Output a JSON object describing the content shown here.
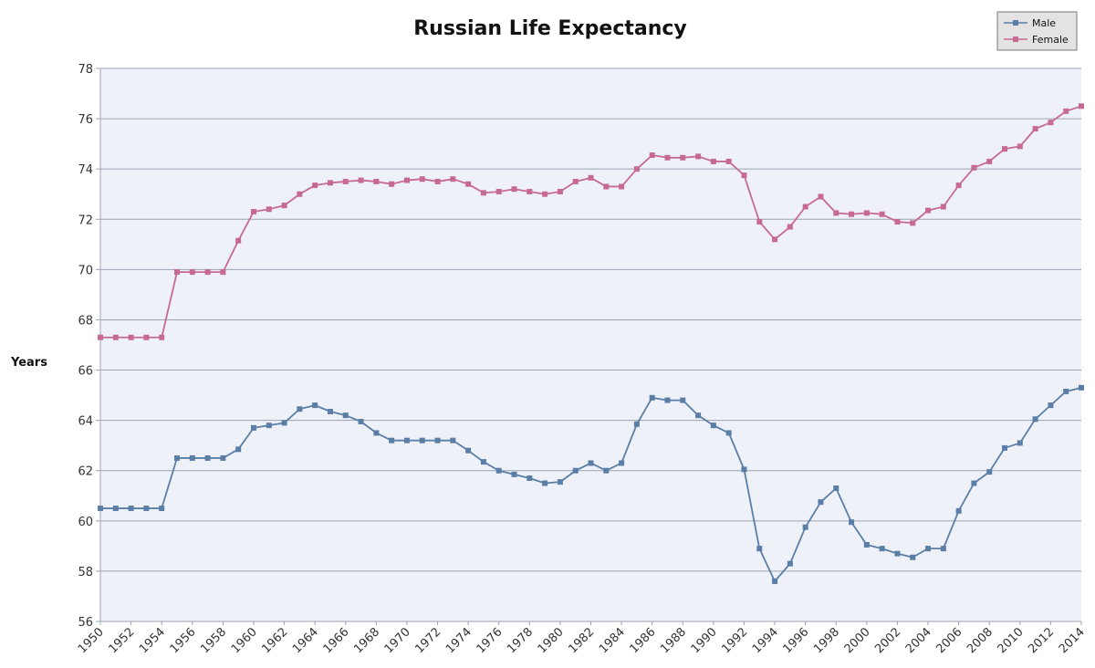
{
  "chart_data": {
    "type": "line",
    "title": "Russian Life Expectancy",
    "xlabel": "",
    "ylabel": "Years",
    "xlim": [
      1950,
      2014
    ],
    "ylim": [
      56,
      78
    ],
    "x_ticks": [
      "1950",
      "1952",
      "1954",
      "1956",
      "1958",
      "1960",
      "1962",
      "1964",
      "1966",
      "1968",
      "1970",
      "1972",
      "1974",
      "1976",
      "1978",
      "1980",
      "1982",
      "1984",
      "1986",
      "1988",
      "1990",
      "1992",
      "1994",
      "1996",
      "1998",
      "2000",
      "2002",
      "2004",
      "2006",
      "2008",
      "2010",
      "2012",
      "2014"
    ],
    "y_ticks": [
      "56",
      "58",
      "60",
      "62",
      "64",
      "66",
      "68",
      "70",
      "72",
      "74",
      "76",
      "78"
    ],
    "grid": true,
    "legend_position": "top-right",
    "x": [
      1950,
      1951,
      1952,
      1953,
      1954,
      1955,
      1956,
      1957,
      1958,
      1959,
      1960,
      1961,
      1962,
      1963,
      1964,
      1965,
      1966,
      1967,
      1968,
      1969,
      1970,
      1971,
      1972,
      1973,
      1974,
      1975,
      1976,
      1977,
      1978,
      1979,
      1980,
      1981,
      1982,
      1983,
      1984,
      1985,
      1986,
      1987,
      1988,
      1989,
      1990,
      1991,
      1992,
      1993,
      1994,
      1995,
      1996,
      1997,
      1998,
      1999,
      2000,
      2001,
      2002,
      2003,
      2004,
      2005,
      2006,
      2007,
      2008,
      2009,
      2010,
      2011,
      2012,
      2013,
      2014
    ],
    "series": [
      {
        "name": "Male",
        "color": "#5b7ea6",
        "values": [
          60.5,
          60.5,
          60.5,
          60.5,
          60.5,
          62.5,
          62.5,
          62.5,
          62.5,
          62.85,
          63.7,
          63.8,
          63.9,
          64.45,
          64.6,
          64.35,
          64.2,
          63.95,
          63.5,
          63.2,
          63.2,
          63.2,
          63.2,
          63.2,
          62.8,
          62.35,
          62.0,
          61.85,
          61.7,
          61.5,
          61.55,
          62.0,
          62.3,
          62.0,
          62.3,
          63.85,
          64.9,
          64.8,
          64.8,
          64.2,
          63.8,
          63.5,
          62.05,
          58.9,
          57.6,
          58.3,
          59.75,
          60.75,
          61.3,
          59.95,
          59.05,
          58.9,
          58.7,
          58.55,
          58.9,
          58.9,
          60.4,
          61.5,
          61.95,
          62.9,
          63.1,
          64.05,
          64.6,
          65.15,
          65.3
        ]
      },
      {
        "name": "Female",
        "color": "#c66a94",
        "values": [
          67.3,
          67.3,
          67.3,
          67.3,
          67.3,
          69.9,
          69.9,
          69.9,
          69.9,
          71.15,
          72.3,
          72.4,
          72.55,
          73.0,
          73.35,
          73.45,
          73.5,
          73.55,
          73.5,
          73.4,
          73.55,
          73.6,
          73.5,
          73.6,
          73.4,
          73.05,
          73.1,
          73.2,
          73.1,
          73.0,
          73.1,
          73.5,
          73.65,
          73.3,
          73.3,
          74.0,
          74.55,
          74.45,
          74.45,
          74.5,
          74.3,
          74.3,
          73.75,
          71.9,
          71.2,
          71.7,
          72.5,
          72.9,
          72.25,
          72.2,
          72.25,
          72.2,
          71.9,
          71.85,
          72.35,
          72.5,
          73.35,
          74.05,
          74.3,
          74.8,
          74.9,
          75.6,
          75.85,
          76.3,
          76.5
        ]
      }
    ]
  }
}
